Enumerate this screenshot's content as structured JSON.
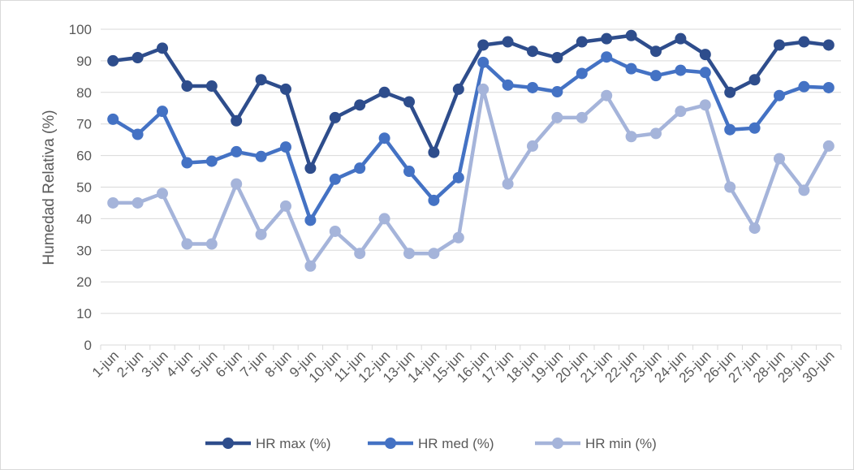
{
  "chart_data": {
    "type": "line",
    "title": "",
    "xlabel": "",
    "ylabel": "Humedad Relativa (%)",
    "ylim": [
      0,
      100
    ],
    "yticks": [
      "0",
      "10",
      "20",
      "30",
      "40",
      "50",
      "60",
      "70",
      "80",
      "90",
      "100"
    ],
    "grid": true,
    "legend_position": "bottom",
    "categories": [
      "1-jun",
      "2-jun",
      "3-jun",
      "4-jun",
      "5-jun",
      "6-jun",
      "7-jun",
      "8-jun",
      "9-jun",
      "10-jun",
      "11-jun",
      "12-jun",
      "13-jun",
      "14-jun",
      "15-jun",
      "16-jun",
      "17-jun",
      "18-jun",
      "19-jun",
      "20-jun",
      "21-jun",
      "22-jun",
      "23-jun",
      "24-jun",
      "25-jun",
      "26-jun",
      "27-jun",
      "28-jun",
      "29-jun",
      "30-jun"
    ],
    "series": [
      {
        "name": "HR max (%)",
        "color": "#2e4d8c",
        "values": [
          90,
          91,
          94,
          82,
          82,
          71,
          84,
          81,
          56,
          72,
          76,
          80,
          77,
          61,
          81,
          95,
          96,
          93,
          91,
          96,
          97,
          98,
          93,
          97,
          92,
          80,
          84,
          95,
          96,
          95
        ]
      },
      {
        "name": "HR med (%)",
        "color": "#4472c4",
        "values": [
          71.5,
          66.7,
          74,
          57.7,
          58.2,
          61.2,
          59.7,
          62.7,
          39.5,
          52.5,
          56,
          65.5,
          55,
          45.8,
          53,
          89.5,
          82.3,
          81.5,
          80.2,
          86,
          91.2,
          87.5,
          85.3,
          87,
          86.3,
          68.2,
          68.7,
          79,
          81.8,
          81.5
        ]
      },
      {
        "name": "HR min (%)",
        "color": "#a5b4da",
        "values": [
          45,
          45,
          48,
          32,
          32,
          51,
          35,
          44,
          25,
          36,
          29,
          40,
          29,
          29,
          34,
          81,
          51,
          63,
          72,
          72,
          79,
          66,
          67,
          74,
          76,
          50,
          37,
          59,
          49,
          63
        ]
      }
    ]
  }
}
